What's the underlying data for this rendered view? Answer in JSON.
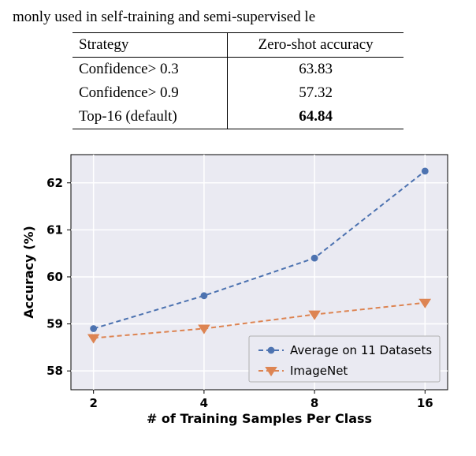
{
  "caption_fragment": "monly used in self-training and semi-supervised le",
  "table": {
    "header": {
      "left": "Strategy",
      "right": "Zero-shot accuracy"
    },
    "rows": [
      {
        "strategy": "Confidence> 0.3",
        "value": "63.83",
        "bold": false
      },
      {
        "strategy": "Confidence> 0.9",
        "value": "57.32",
        "bold": false
      },
      {
        "strategy": "Top-16 (default)",
        "value": "64.84",
        "bold": true
      }
    ]
  },
  "chart": {
    "type": "line",
    "xlabel": "# of Training Samples Per Class",
    "ylabel": "Accuracy (%)",
    "x_ticks": [
      2,
      4,
      8,
      16
    ],
    "y_ticks": [
      58,
      59,
      60,
      61,
      62
    ],
    "ylim": [
      57.6,
      62.6
    ],
    "background_color": "#eaeaf2",
    "grid_color": "#ffffff",
    "border_color": "#000000",
    "label_fontsize": 16,
    "tick_fontsize": 15,
    "legend_fontsize": 15,
    "series": [
      {
        "name": "Average on 11 Datasets",
        "color": "#4c72b0",
        "marker": "circle",
        "marker_size": 6,
        "line_width": 2,
        "dash": "6,4",
        "x": [
          2,
          4,
          8,
          16
        ],
        "y": [
          58.9,
          59.6,
          60.4,
          62.25
        ]
      },
      {
        "name": "ImageNet",
        "color": "#dd8452",
        "marker": "triangle-down",
        "marker_size": 7,
        "line_width": 2,
        "dash": "6,4",
        "x": [
          2,
          4,
          8,
          16
        ],
        "y": [
          58.7,
          58.9,
          59.2,
          59.45
        ]
      }
    ],
    "legend_position": "lower right"
  }
}
